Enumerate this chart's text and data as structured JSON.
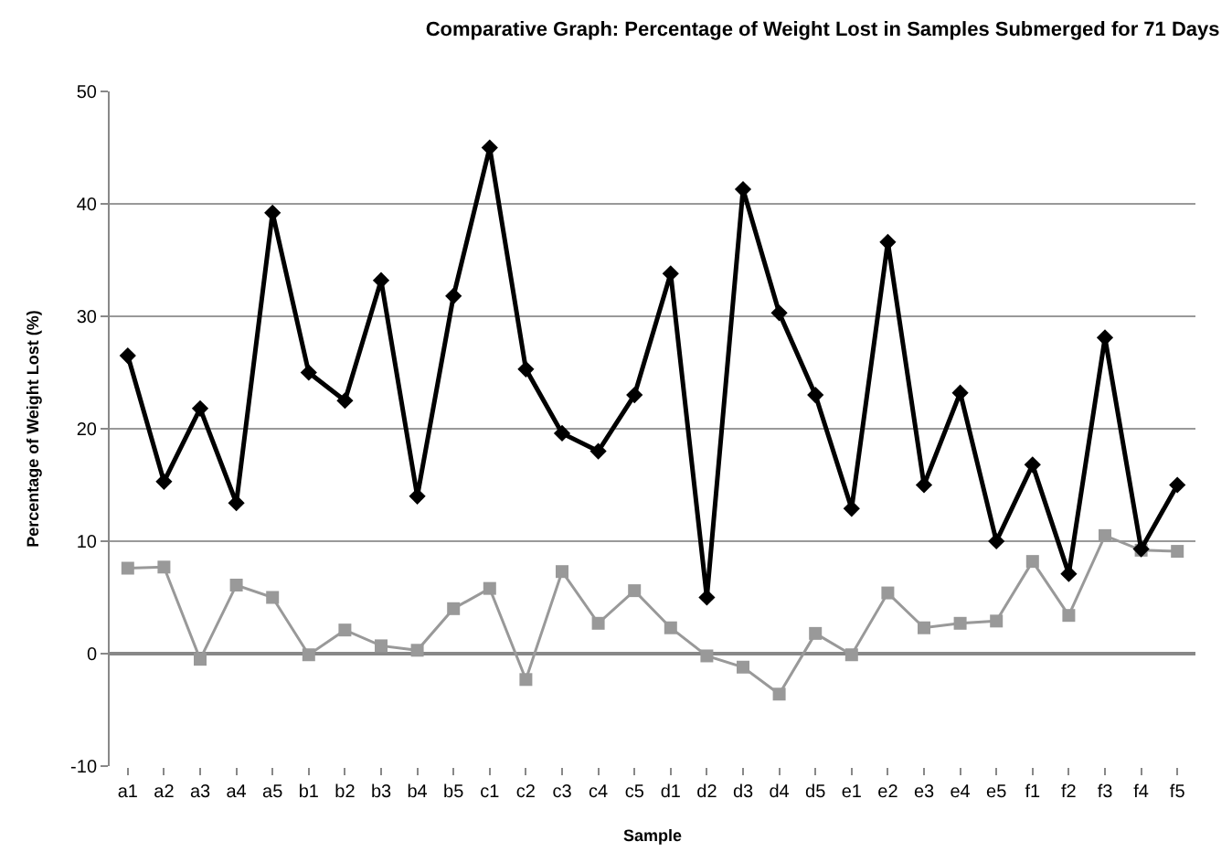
{
  "chart_data": {
    "type": "line",
    "title": "Comparative Graph: Percentage of Weight Lost in Samples Submerged for 71 Days",
    "xlabel": "Sample",
    "ylabel": "Percentage of Weight Lost (%)",
    "categories": [
      "a1",
      "a2",
      "a3",
      "a4",
      "a5",
      "b1",
      "b2",
      "b3",
      "b4",
      "b5",
      "c1",
      "c2",
      "c3",
      "c4",
      "c5",
      "d1",
      "d2",
      "d3",
      "d4",
      "d5",
      "e1",
      "e2",
      "e3",
      "e4",
      "e5",
      "f1",
      "f2",
      "f3",
      "f4",
      "f5"
    ],
    "series": [
      {
        "color": "#000000",
        "marker": "diamond",
        "values": [
          26.5,
          15.3,
          21.8,
          13.4,
          39.2,
          25,
          22.5,
          33.2,
          14,
          31.8,
          45,
          25.3,
          19.6,
          18,
          23,
          33.8,
          5,
          41.3,
          30.3,
          23,
          12.9,
          36.6,
          15,
          23.2,
          10,
          16.8,
          7.1,
          28.1,
          9.3,
          15
        ]
      },
      {
        "color": "#999999",
        "marker": "square",
        "values": [
          7.6,
          7.7,
          -0.5,
          6.1,
          5,
          -0.1,
          2.1,
          0.7,
          0.3,
          4,
          5.8,
          -2.3,
          7.3,
          2.7,
          5.6,
          2.3,
          -0.2,
          -1.2,
          -3.6,
          1.8,
          -0.1,
          5.4,
          2.3,
          2.7,
          2.9,
          8.2,
          3.4,
          10.5,
          9.2,
          9.1
        ]
      }
    ],
    "ylim": [
      -10,
      50
    ],
    "yticks": [
      -10,
      0,
      10,
      20,
      30,
      40,
      50
    ],
    "grid": "y",
    "line_style": "solid"
  }
}
